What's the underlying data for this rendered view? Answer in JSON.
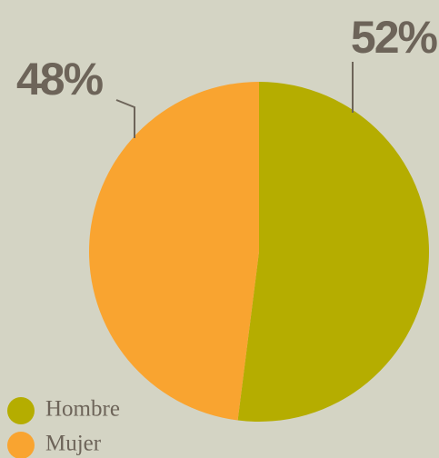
{
  "chart_data": {
    "type": "pie",
    "categories": [
      "Hombre",
      "Mujer"
    ],
    "values": [
      52,
      48
    ],
    "value_labels": [
      "52%",
      "48%"
    ],
    "colors": [
      "#b5ad00",
      "#f9a430"
    ]
  }
}
